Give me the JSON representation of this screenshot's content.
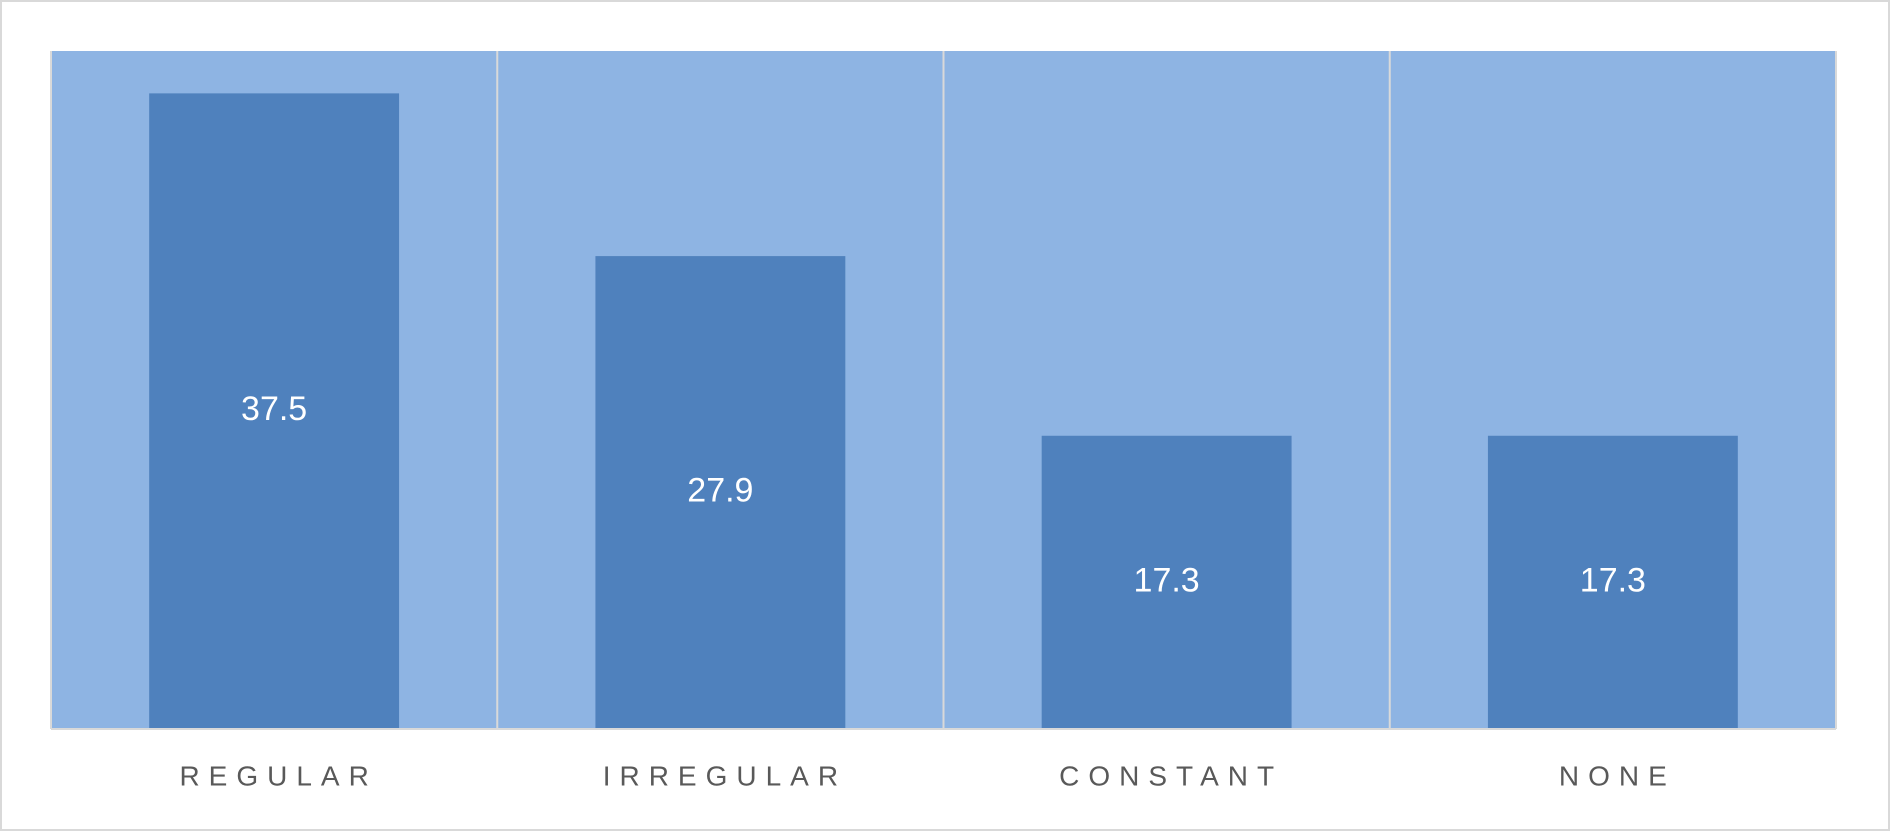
{
  "chart_data": {
    "type": "bar",
    "categories": [
      "REGULAR",
      "IRREGULAR",
      "CONSTANT",
      "NONE"
    ],
    "values": [
      37.5,
      27.9,
      17.3,
      17.3
    ],
    "color": "#4f81bd",
    "ylim": [
      0,
      40
    ]
  }
}
